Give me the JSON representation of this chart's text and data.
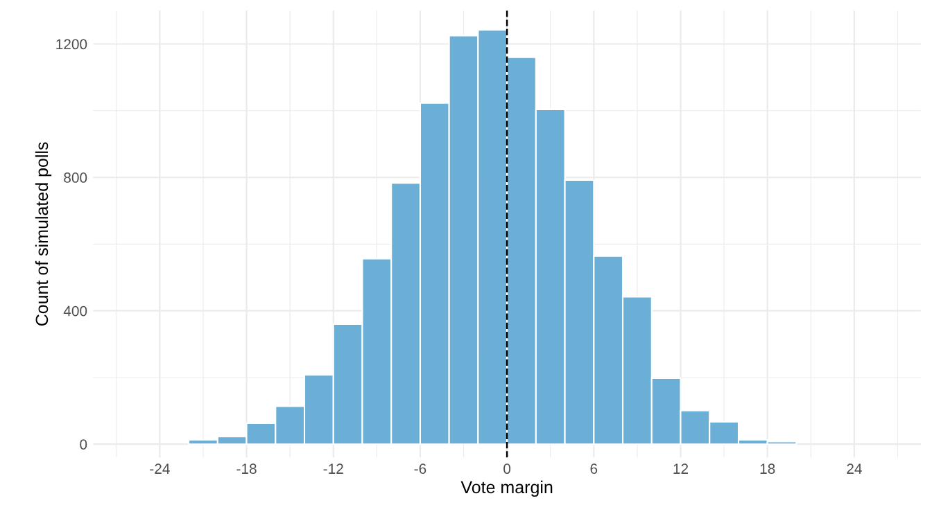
{
  "chart_data": {
    "type": "histogram",
    "xlabel": "Vote margin",
    "ylabel": "Count of simulated polls",
    "bins": [
      -26,
      -24,
      -22,
      -20,
      -18,
      -16,
      -14,
      -12,
      -10,
      -8,
      -6,
      -4,
      -2,
      0,
      2,
      4,
      6,
      8,
      10,
      12,
      14,
      16,
      18,
      20,
      22,
      24,
      26
    ],
    "values": [
      0,
      0,
      13,
      23,
      63,
      114,
      208,
      360,
      556,
      783,
      1023,
      1225,
      1242,
      1160,
      1004,
      792,
      564,
      442,
      198,
      101,
      67,
      13,
      8,
      0,
      0,
      0
    ],
    "color": "#6baed6",
    "xlim": [
      -28.6,
      28.6
    ],
    "xticks": [
      -24,
      -18,
      -12,
      -6,
      0,
      6,
      12,
      18,
      24
    ],
    "ylim": [
      -40,
      1300
    ],
    "yticks": [
      0,
      400,
      800,
      1200
    ],
    "grid": true,
    "ref_lines": [
      {
        "axis": "x",
        "value": 0,
        "color": "#000000",
        "line_style": "dashed"
      }
    ]
  }
}
